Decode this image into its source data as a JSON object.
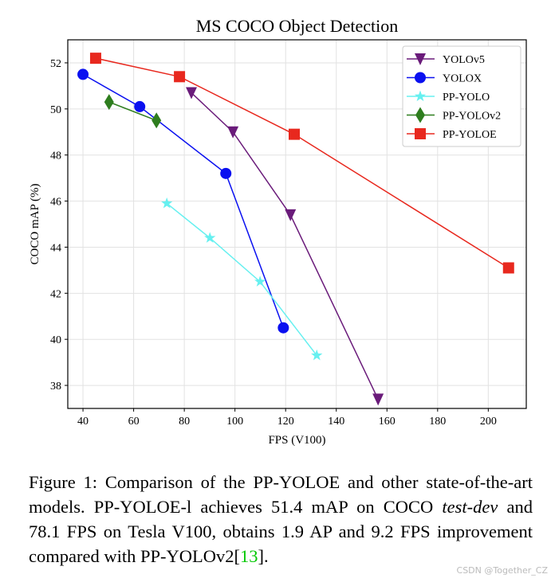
{
  "chart_data": {
    "type": "line",
    "title": "MS COCO Object Detection",
    "xlabel": "FPS (V100)",
    "ylabel": "COCO mAP (%)",
    "xlim": [
      34,
      215
    ],
    "ylim": [
      37.0,
      53.0
    ],
    "xticks": [
      40,
      60,
      80,
      100,
      120,
      140,
      160,
      180,
      200
    ],
    "yticks": [
      38,
      40,
      42,
      44,
      46,
      48,
      50,
      52
    ],
    "grid": true,
    "legend_position": "top-right",
    "series": [
      {
        "name": "YOLOv5",
        "color": "#6a1b7a",
        "marker": "triangle-down",
        "x": [
          82.8,
          99.2,
          121.9,
          156.5
        ],
        "y": [
          50.7,
          49.0,
          45.4,
          37.4
        ]
      },
      {
        "name": "YOLOX",
        "color": "#0a10f0",
        "marker": "circle",
        "x": [
          40.0,
          62.4,
          96.4,
          119.1
        ],
        "y": [
          51.5,
          50.1,
          47.2,
          40.5
        ]
      },
      {
        "name": "PP-YOLO",
        "color": "#66f0f0",
        "marker": "star",
        "x": [
          73.1,
          90.1,
          109.9,
          132.3
        ],
        "y": [
          45.9,
          44.4,
          42.5,
          39.3
        ]
      },
      {
        "name": "PP-YOLOv2",
        "color": "#2e7d1e",
        "marker": "diamond",
        "x": [
          50.3,
          69.0
        ],
        "y": [
          50.3,
          49.5
        ]
      },
      {
        "name": "PP-YOLOE",
        "color": "#e8281e",
        "marker": "square",
        "x": [
          45.0,
          78.1,
          123.4,
          208.0
        ],
        "y": [
          52.2,
          51.4,
          48.9,
          43.1
        ]
      }
    ]
  },
  "caption": {
    "part1": "Figure 1: Comparison of the PP-YOLOE and other state-of-the-art models. PP-YOLOE-l achieves 51.4 mAP on COCO ",
    "italic": "test-dev",
    "part2": " and 78.1 FPS on Tesla V100, obtains 1.9 AP and 9.2 FPS improvement compared with PP-YOLOv2[",
    "ref": "13",
    "part3": "]."
  },
  "watermark": "CSDN @Together_CZ"
}
